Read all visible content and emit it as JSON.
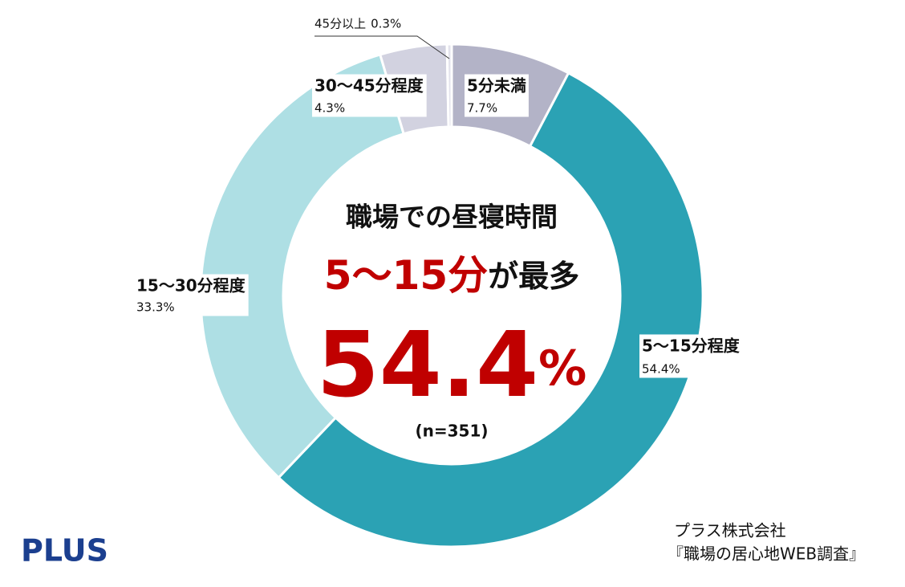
{
  "chart_data": {
    "type": "donut",
    "title": "職場での昼寝時間",
    "highlight": "5〜15分",
    "highlight_suffix": "が最多",
    "headline_value": "54.4",
    "headline_unit": "%",
    "note": "(n=351)",
    "categories": [
      "5分未満",
      "5〜15分程度",
      "15〜30分程度",
      "30〜45分程度",
      "45分以上"
    ],
    "values": [
      7.7,
      54.4,
      33.3,
      4.3,
      0.3
    ],
    "value_labels": [
      "7.7%",
      "54.4%",
      "33.3%",
      "4.3%",
      "0.3%"
    ],
    "colors": [
      "#b3b3c7",
      "#2ba2b4",
      "#aedfe4",
      "#d2d2e0",
      "#e3e3ec"
    ]
  },
  "source": {
    "company": "プラス株式会社",
    "survey": "『職場の居心地WEB調査』"
  },
  "logo": "PLUS"
}
